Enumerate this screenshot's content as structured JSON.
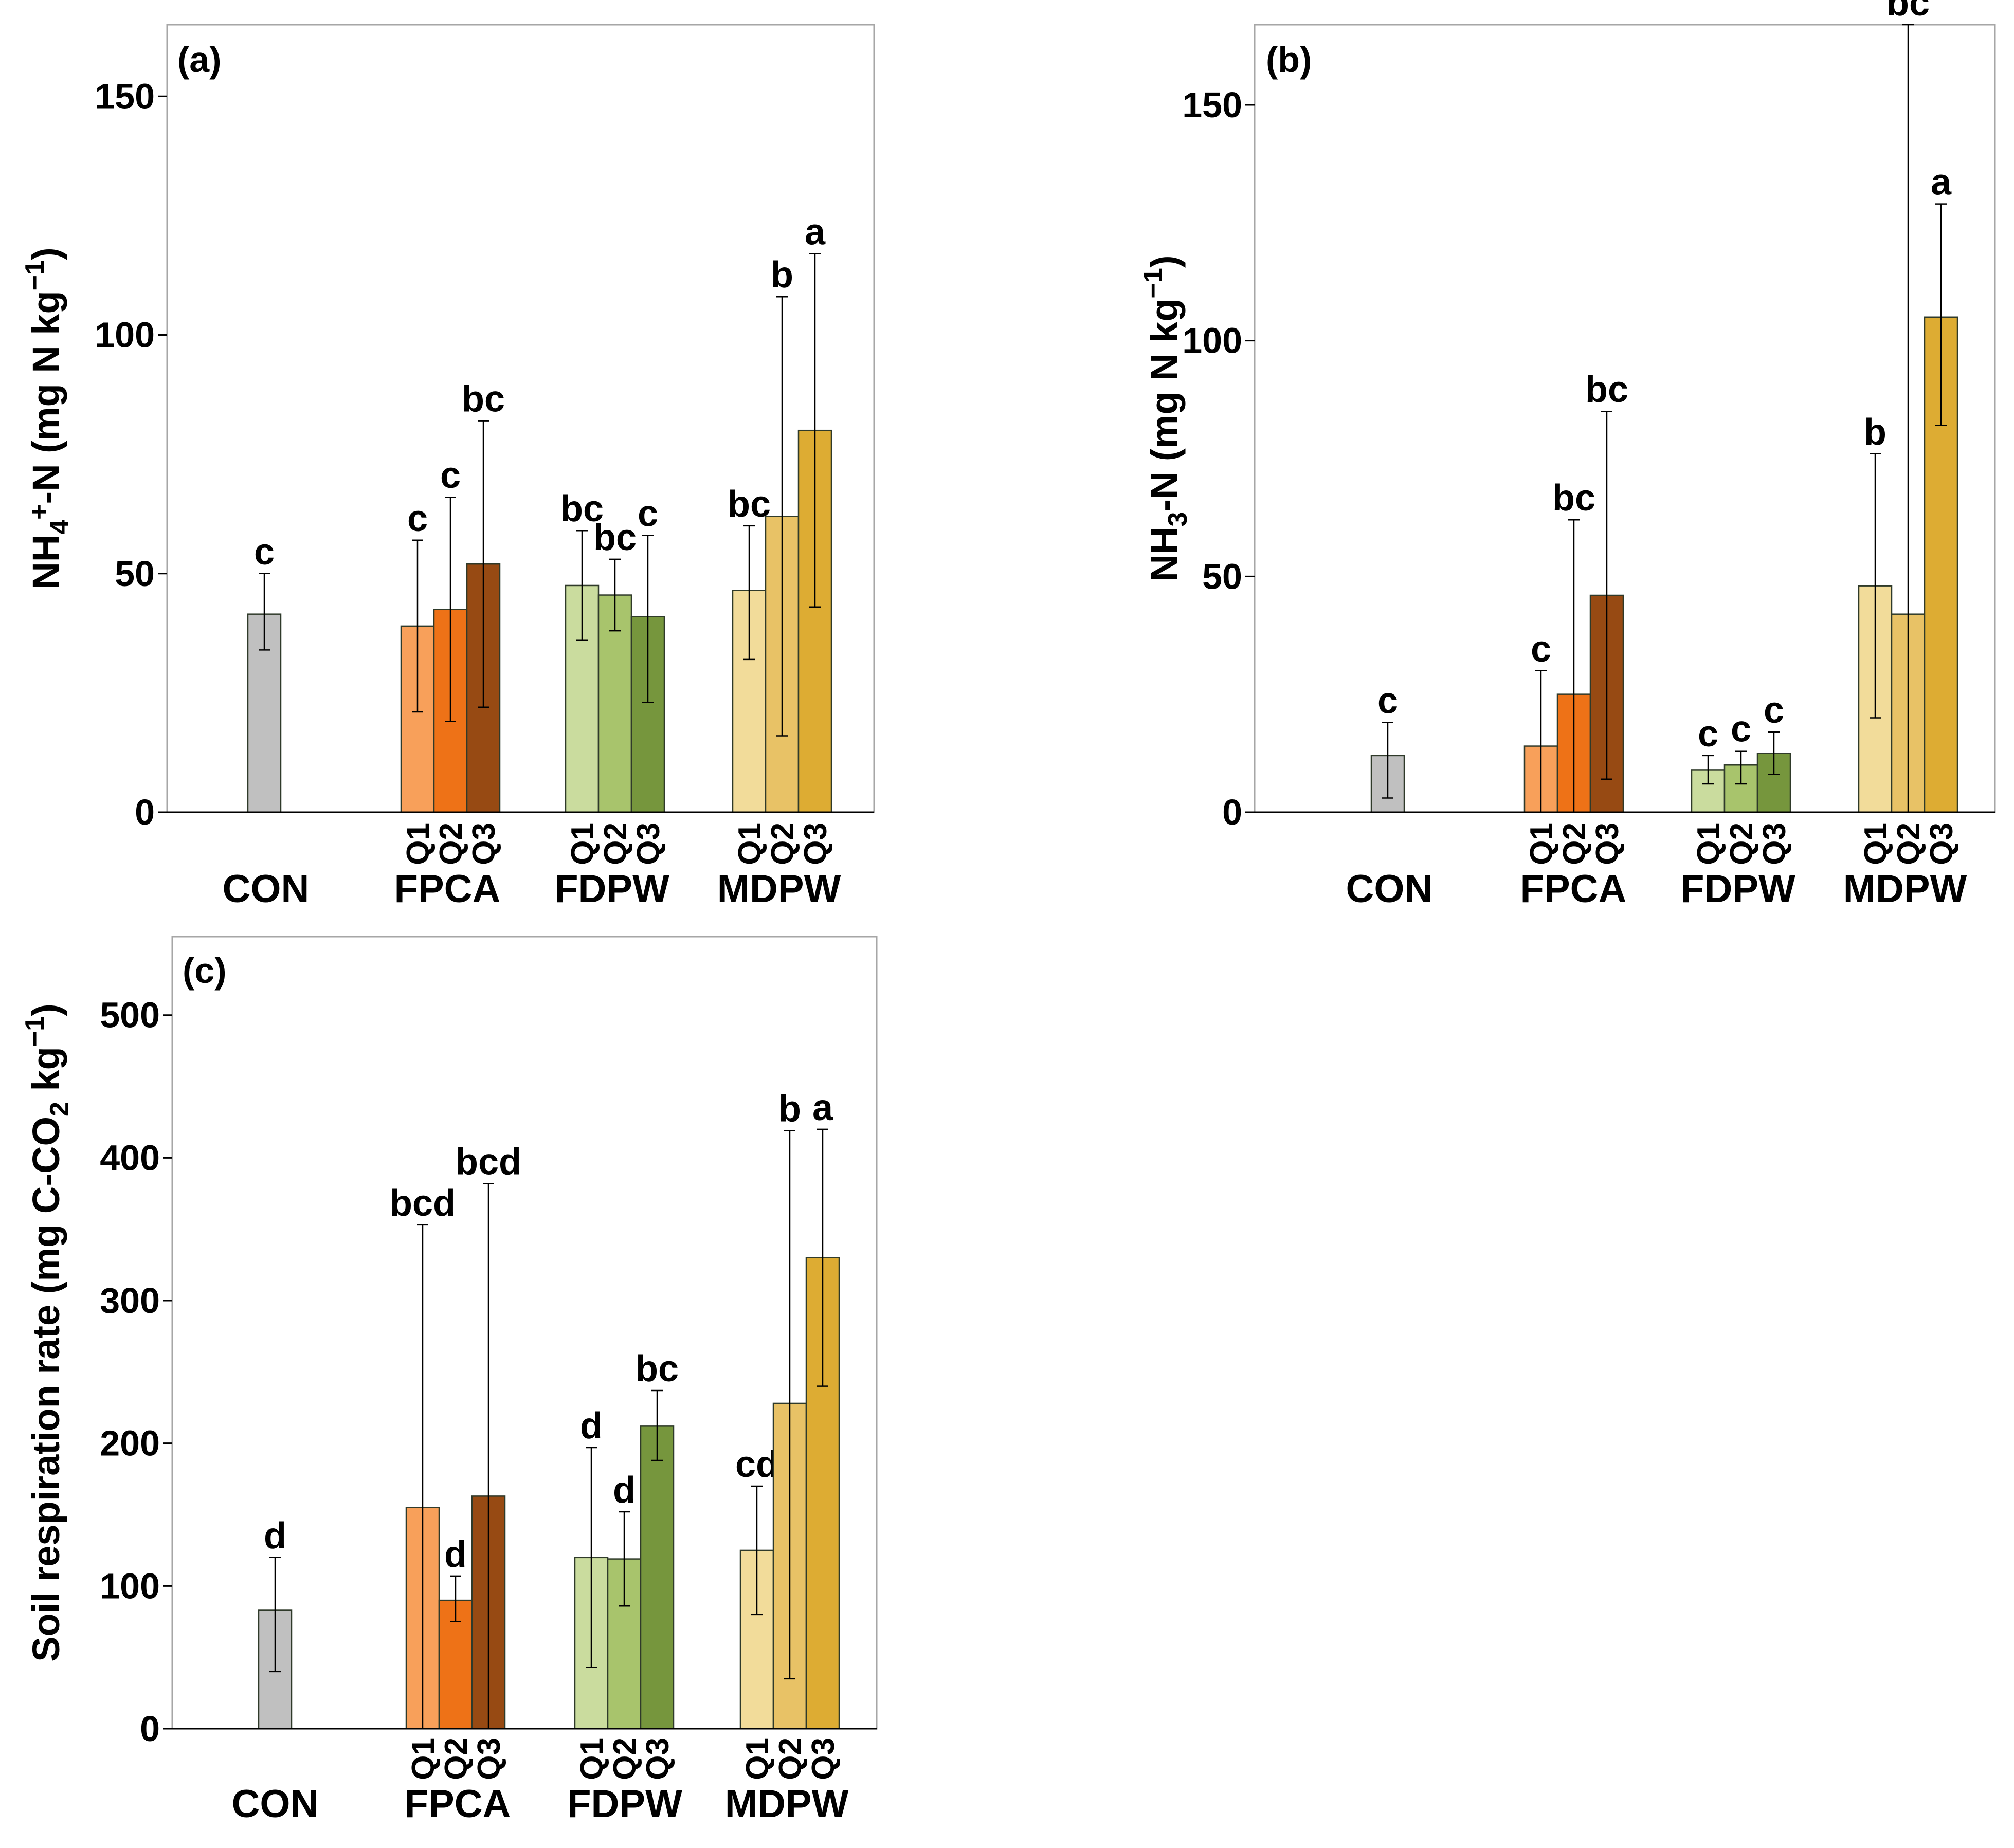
{
  "colors": {
    "CON": "#c0c0c0",
    "FPCA_Q1": "#f8a05a",
    "FPCA_Q2": "#ee7217",
    "FPCA_Q3": "#974a13",
    "FDPW_Q1": "#cadc9e",
    "FDPW_Q2": "#a8c46c",
    "FDPW_Q3": "#76963d",
    "MDPW_Q1": "#f2dc9a",
    "MDPW_Q2": "#e8c266",
    "MDPW_Q3": "#ddac33"
  },
  "chart_data": [
    {
      "type": "bar",
      "panel": "(a)",
      "ylabel": {
        "pre": "NH",
        "sub": "4",
        "sup": "+",
        "post": "-N (mg N kg",
        "unit_sup": "−1",
        "close": ")"
      },
      "ylim": [
        0,
        165
      ],
      "yticks": [
        0,
        50,
        100,
        150
      ],
      "groups": [
        "CON",
        "FPCA",
        "FDPW",
        "MDPW"
      ],
      "quartiles": [
        "Q1",
        "Q2",
        "Q3"
      ],
      "bars": [
        {
          "group": "CON",
          "q": "",
          "color": "CON",
          "value": 41.5,
          "err_low": 34,
          "err_high": 50,
          "letter": "c"
        },
        {
          "group": "FPCA",
          "q": "Q1",
          "color": "FPCA_Q1",
          "value": 39,
          "err_low": 21,
          "err_high": 57,
          "letter": "c"
        },
        {
          "group": "FPCA",
          "q": "Q2",
          "color": "FPCA_Q2",
          "value": 42.5,
          "err_low": 19,
          "err_high": 66,
          "letter": "c"
        },
        {
          "group": "FPCA",
          "q": "Q3",
          "color": "FPCA_Q3",
          "value": 52,
          "err_low": 22,
          "err_high": 82,
          "letter": "bc"
        },
        {
          "group": "FDPW",
          "q": "Q1",
          "color": "FDPW_Q1",
          "value": 47.5,
          "err_low": 36,
          "err_high": 59,
          "letter": "bc"
        },
        {
          "group": "FDPW",
          "q": "Q2",
          "color": "FDPW_Q2",
          "value": 45.5,
          "err_low": 38,
          "err_high": 53,
          "letter": "bc"
        },
        {
          "group": "FDPW",
          "q": "Q3",
          "color": "FDPW_Q3",
          "value": 41,
          "err_low": 23,
          "err_high": 58,
          "letter": "c"
        },
        {
          "group": "MDPW",
          "q": "Q1",
          "color": "MDPW_Q1",
          "value": 46.5,
          "err_low": 32,
          "err_high": 60,
          "letter": "bc"
        },
        {
          "group": "MDPW",
          "q": "Q2",
          "color": "MDPW_Q2",
          "value": 62,
          "err_low": 16,
          "err_high": 108,
          "letter": "b"
        },
        {
          "group": "MDPW",
          "q": "Q3",
          "color": "MDPW_Q3",
          "value": 80,
          "err_low": 43,
          "err_high": 117,
          "letter": "a"
        }
      ]
    },
    {
      "type": "bar",
      "panel": "(b)",
      "ylabel": {
        "pre": "NH",
        "sub": "3",
        "sup": "",
        "post": "-N (mg N kg",
        "unit_sup": "−1",
        "close": ")"
      },
      "ylim": [
        0,
        167
      ],
      "yticks": [
        0,
        50,
        100,
        150
      ],
      "groups": [
        "CON",
        "FPCA",
        "FDPW",
        "MDPW"
      ],
      "quartiles": [
        "Q1",
        "Q2",
        "Q3"
      ],
      "bars": [
        {
          "group": "CON",
          "q": "",
          "color": "CON",
          "value": 12,
          "err_low": 3,
          "err_high": 19,
          "letter": "c"
        },
        {
          "group": "FPCA",
          "q": "Q1",
          "color": "FPCA_Q1",
          "value": 14,
          "err_low": 0,
          "err_high": 30,
          "letter": "c"
        },
        {
          "group": "FPCA",
          "q": "Q2",
          "color": "FPCA_Q2",
          "value": 25,
          "err_low": 0,
          "err_high": 62,
          "letter": "bc"
        },
        {
          "group": "FPCA",
          "q": "Q3",
          "color": "FPCA_Q3",
          "value": 46,
          "err_low": 7,
          "err_high": 85,
          "letter": "bc"
        },
        {
          "group": "FDPW",
          "q": "Q1",
          "color": "FDPW_Q1",
          "value": 9,
          "err_low": 6,
          "err_high": 12,
          "letter": "c"
        },
        {
          "group": "FDPW",
          "q": "Q2",
          "color": "FDPW_Q2",
          "value": 10,
          "err_low": 6,
          "err_high": 13,
          "letter": "c"
        },
        {
          "group": "FDPW",
          "q": "Q3",
          "color": "FDPW_Q3",
          "value": 12.5,
          "err_low": 8,
          "err_high": 17,
          "letter": "c"
        },
        {
          "group": "MDPW",
          "q": "Q1",
          "color": "MDPW_Q1",
          "value": 48,
          "err_low": 20,
          "err_high": 76,
          "letter": "b"
        },
        {
          "group": "MDPW",
          "q": "Q2",
          "color": "MDPW_Q2",
          "value": 42,
          "err_low": 0,
          "err_high": 167,
          "letter": "bc"
        },
        {
          "group": "MDPW",
          "q": "Q3",
          "color": "MDPW_Q3",
          "value": 105,
          "err_low": 82,
          "err_high": 129,
          "letter": "a"
        }
      ]
    },
    {
      "type": "bar",
      "panel": "(c)",
      "ylabel": {
        "pre": "Soil respiration rate (mg C-CO",
        "sub": "2",
        "sup": "",
        "post": " kg",
        "unit_sup": "−1",
        "close": ")"
      },
      "ylim": [
        0,
        555
      ],
      "yticks": [
        0,
        100,
        200,
        300,
        400,
        500
      ],
      "groups": [
        "CON",
        "FPCA",
        "FDPW",
        "MDPW"
      ],
      "quartiles": [
        "Q1",
        "Q2",
        "Q3"
      ],
      "bars": [
        {
          "group": "CON",
          "q": "",
          "color": "CON",
          "value": 83,
          "err_low": 40,
          "err_high": 120,
          "letter": "d"
        },
        {
          "group": "FPCA",
          "q": "Q1",
          "color": "FPCA_Q1",
          "value": 155,
          "err_low": 0,
          "err_high": 353,
          "letter": "bcd"
        },
        {
          "group": "FPCA",
          "q": "Q2",
          "color": "FPCA_Q2",
          "value": 90,
          "err_low": 75,
          "err_high": 107,
          "letter": "d"
        },
        {
          "group": "FPCA",
          "q": "Q3",
          "color": "FPCA_Q3",
          "value": 163,
          "err_low": 0,
          "err_high": 382,
          "letter": "bcd"
        },
        {
          "group": "FDPW",
          "q": "Q1",
          "color": "FDPW_Q1",
          "value": 120,
          "err_low": 43,
          "err_high": 197,
          "letter": "d"
        },
        {
          "group": "FDPW",
          "q": "Q2",
          "color": "FDPW_Q2",
          "value": 119,
          "err_low": 86,
          "err_high": 152,
          "letter": "d"
        },
        {
          "group": "FDPW",
          "q": "Q3",
          "color": "FDPW_Q3",
          "value": 212,
          "err_low": 188,
          "err_high": 237,
          "letter": "bc"
        },
        {
          "group": "MDPW",
          "q": "Q1",
          "color": "MDPW_Q1",
          "value": 125,
          "err_low": 80,
          "err_high": 170,
          "letter": "cd"
        },
        {
          "group": "MDPW",
          "q": "Q2",
          "color": "MDPW_Q2",
          "value": 228,
          "err_low": 35,
          "err_high": 419,
          "letter": "b"
        },
        {
          "group": "MDPW",
          "q": "Q3",
          "color": "MDPW_Q3",
          "value": 330,
          "err_low": 240,
          "err_high": 420,
          "letter": "a"
        }
      ]
    }
  ]
}
